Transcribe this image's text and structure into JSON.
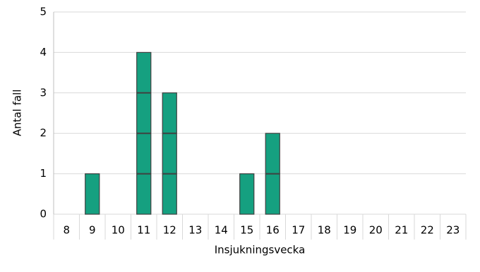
{
  "chart_data": {
    "type": "bar",
    "y_label": "Antal fall",
    "x_label": "Insjukningsvecka",
    "categories": [
      "8",
      "9",
      "10",
      "11",
      "12",
      "13",
      "14",
      "15",
      "16",
      "17",
      "18",
      "19",
      "20",
      "21",
      "22",
      "23"
    ],
    "values": [
      0,
      1,
      0,
      4,
      3,
      0,
      0,
      1,
      2,
      0,
      0,
      0,
      0,
      0,
      0,
      0
    ],
    "color": "#15a080",
    "ylim": [
      0,
      5
    ],
    "yticks": [
      0,
      1,
      2,
      3,
      4,
      5
    ],
    "grid": true
  }
}
